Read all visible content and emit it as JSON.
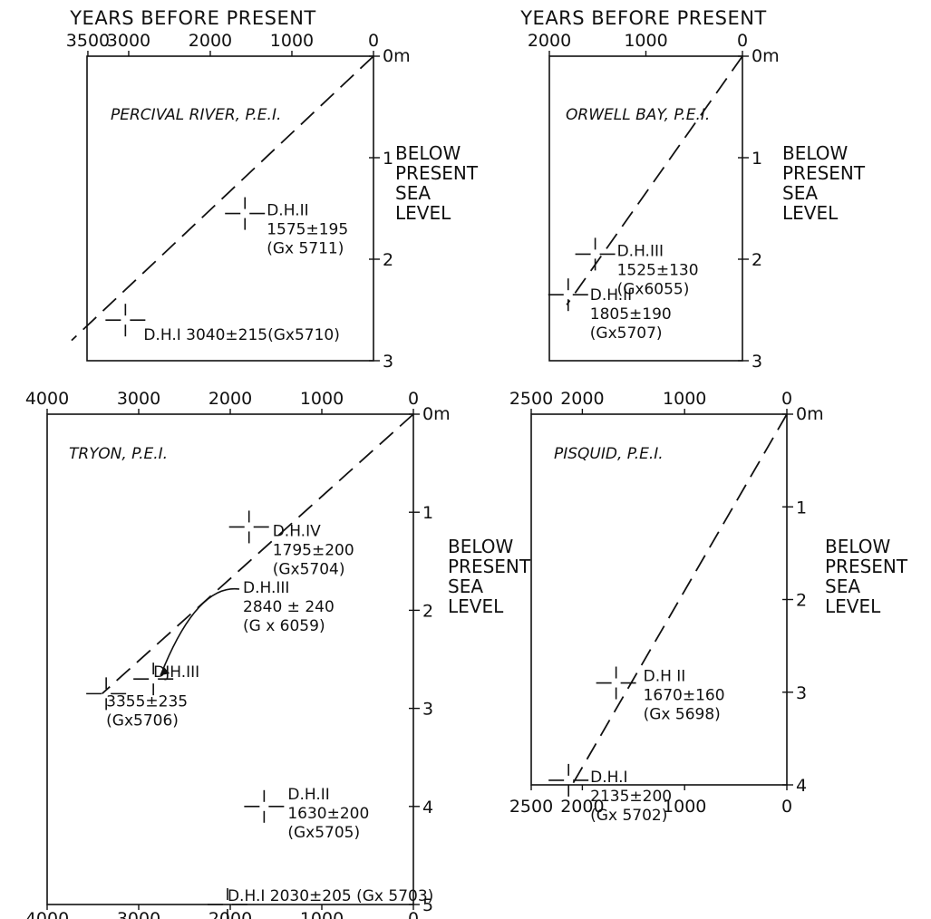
{
  "figure": {
    "top_axis_title": "YEARS BEFORE PRESENT",
    "depth_label_lines": [
      "BELOW",
      "PRESENT",
      "SEA",
      "LEVEL"
    ]
  },
  "chart_data": [
    {
      "type": "scatter",
      "title": "PERCIVAL RIVER, P.E.I.",
      "xlabel": "YEARS BEFORE PRESENT",
      "ylabel": "BELOW PRESENT SEA LEVEL",
      "xlim": [
        3500,
        0
      ],
      "ylim": [
        0,
        3
      ],
      "x_ticks": [
        "3500",
        "3000",
        "2000",
        "1000",
        "0"
      ],
      "y_ticks": [
        "0m",
        "1",
        "2",
        "3"
      ],
      "points": [
        {
          "x": 1575,
          "y": 1.55,
          "labels": [
            "D.H.II",
            "1575±195",
            "(Gx 5711)"
          ]
        },
        {
          "x": 3040,
          "y": 2.6,
          "labels": [
            "D.H.I 3040±215(Gx5710)"
          ]
        }
      ],
      "trend_line": [
        [
          0,
          0
        ],
        [
          3700,
          2.8
        ]
      ]
    },
    {
      "type": "scatter",
      "title": "ORWELL BAY, P.E.I.",
      "xlabel": "YEARS BEFORE PRESENT",
      "ylabel": "BELOW PRESENT SEA LEVEL",
      "xlim": [
        2000,
        0
      ],
      "ylim": [
        0,
        3
      ],
      "x_ticks": [
        "2000",
        "1000",
        "0"
      ],
      "y_ticks": [
        "0m",
        "1",
        "2",
        "3"
      ],
      "points": [
        {
          "x": 1525,
          "y": 1.95,
          "labels": [
            "D.H.III",
            "1525±130",
            "(Gx6055)"
          ]
        },
        {
          "x": 1805,
          "y": 2.35,
          "labels": [
            "D.H.II",
            "1805±190",
            "(Gx5707)"
          ]
        }
      ],
      "trend_line": [
        [
          0,
          0
        ],
        [
          1820,
          2.45
        ]
      ]
    },
    {
      "type": "scatter",
      "title": "TRYON, P.E.I.",
      "xlabel": "YEARS BEFORE PRESENT",
      "ylabel": "BELOW PRESENT SEA LEVEL",
      "xlim": [
        4000,
        0
      ],
      "ylim": [
        0,
        5
      ],
      "x_ticks": [
        "4000",
        "3000",
        "2000",
        "1000",
        "0"
      ],
      "y_ticks": [
        "0m",
        "1",
        "2",
        "3",
        "4",
        "5"
      ],
      "points": [
        {
          "x": 1795,
          "y": 1.15,
          "labels": [
            "D.H.IV",
            "1795±200",
            "(Gx5704)"
          ]
        },
        {
          "x": 2840,
          "y": 2.7,
          "labels": [
            "DJH.III"
          ]
        },
        {
          "x": 3355,
          "y": 2.85,
          "labels": [
            "3355±235",
            "(Gx5706)"
          ]
        },
        {
          "x": 1630,
          "y": 4.0,
          "labels": [
            "D.H.II",
            "1630±200",
            "(Gx5705)"
          ]
        },
        {
          "x": 2030,
          "y": 5.0,
          "labels": [
            "D.H.I 2030±205 (Gx 5703)"
          ]
        }
      ],
      "annotation": {
        "lines": [
          "D.H.III",
          "2840 ± 240",
          "(G x 6059)"
        ],
        "arrow_to": {
          "x": 2840,
          "y": 2.7
        }
      },
      "trend_line": [
        [
          0,
          0
        ],
        [
          3400,
          2.85
        ]
      ]
    },
    {
      "type": "scatter",
      "title": "PISQUID, P.E.I.",
      "xlabel": "YEARS BEFORE PRESENT",
      "ylabel": "BELOW PRESENT SEA LEVEL",
      "xlim": [
        2500,
        0
      ],
      "ylim": [
        0,
        4
      ],
      "x_ticks": [
        "2500",
        "2000",
        "1000",
        "0"
      ],
      "y_ticks": [
        "0m",
        "1",
        "2",
        "3",
        "4"
      ],
      "points": [
        {
          "x": 1670,
          "y": 2.9,
          "labels": [
            "D.H II",
            "1670±160",
            "(Gx 5698)"
          ]
        },
        {
          "x": 2135,
          "y": 3.95,
          "labels": [
            "D.H.I",
            "2135±200",
            "(Gx 5702)"
          ]
        }
      ],
      "trend_line": [
        [
          0,
          0
        ],
        [
          2100,
          4.0
        ]
      ]
    }
  ]
}
